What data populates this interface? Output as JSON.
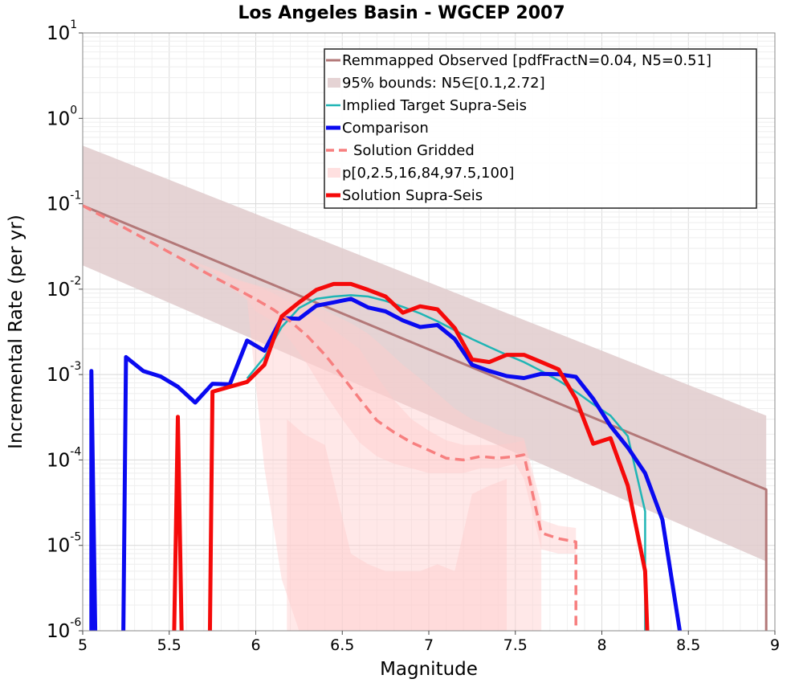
{
  "chart_data": {
    "type": "line",
    "title": "Los Angeles Basin - WGCEP 2007",
    "xlabel": "Magnitude",
    "ylabel": "Incremental Rate (per yr)",
    "xlim": [
      5,
      9
    ],
    "ylim": [
      1e-06,
      10
    ],
    "yscale": "log",
    "grid": true,
    "legend_position": "top-right",
    "x_ticks": [
      {
        "value": 5,
        "label": "5"
      },
      {
        "value": 5.5,
        "label": "5.5"
      },
      {
        "value": 6,
        "label": "6"
      },
      {
        "value": 6.5,
        "label": "6.5"
      },
      {
        "value": 7,
        "label": "7"
      },
      {
        "value": 7.5,
        "label": "7.5"
      },
      {
        "value": 8,
        "label": "8"
      },
      {
        "value": 8.5,
        "label": "8.5"
      },
      {
        "value": 9,
        "label": "9"
      }
    ],
    "y_ticks": [
      {
        "value": 1e-06,
        "base": "10",
        "exp": "-6"
      },
      {
        "value": 1e-05,
        "base": "10",
        "exp": "-5"
      },
      {
        "value": 0.0001,
        "base": "10",
        "exp": "-4"
      },
      {
        "value": 0.001,
        "base": "10",
        "exp": "-3"
      },
      {
        "value": 0.01,
        "base": "10",
        "exp": "-2"
      },
      {
        "value": 0.1,
        "base": "10",
        "exp": "-1"
      },
      {
        "value": 1,
        "base": "10",
        "exp": "0"
      },
      {
        "value": 10,
        "base": "10",
        "exp": "1"
      }
    ],
    "series": [
      {
        "name": "Remmapped Observed [pdfFractN=0.04, N5=0.51]",
        "kind": "line",
        "color": "#b37878",
        "width": 3,
        "x": [
          5.0,
          8.95,
          8.95
        ],
        "y": [
          0.095,
          4.5e-05,
          1e-07
        ]
      },
      {
        "name": "95% bounds: N5∈[0.1,2.72]",
        "kind": "band",
        "color": "#e0cbcd",
        "opacity": 0.85,
        "x": [
          5.0,
          8.95
        ],
        "lower": [
          0.019,
          6.5e-06
        ],
        "upper": [
          0.48,
          0.00033
        ]
      },
      {
        "name": "Implied Target Supra-Seis",
        "kind": "line",
        "color": "#1fb5b5",
        "width": 2.5,
        "x": [
          5.95,
          6.05,
          6.15,
          6.25,
          6.35,
          6.45,
          6.55,
          6.65,
          6.75,
          6.85,
          6.95,
          7.05,
          7.15,
          7.25,
          7.35,
          7.45,
          7.55,
          7.65,
          7.75,
          7.85,
          7.95,
          8.05,
          8.15,
          8.25,
          8.25
        ],
        "y": [
          0.0009,
          0.0016,
          0.0036,
          0.006,
          0.0077,
          0.0082,
          0.0085,
          0.0082,
          0.0073,
          0.0062,
          0.0052,
          0.0042,
          0.0033,
          0.0026,
          0.0021,
          0.0017,
          0.0014,
          0.0011,
          0.00085,
          0.00063,
          0.00045,
          0.00033,
          0.00019,
          2.5e-05,
          1e-07
        ]
      },
      {
        "name": "Comparison",
        "kind": "line",
        "color": "#0a0af0",
        "width": 5,
        "x": [
          5.05,
          5.05,
          5.08,
          5.23,
          5.25,
          5.35,
          5.45,
          5.55,
          5.65,
          5.75,
          5.85,
          5.95,
          6.05,
          6.15,
          6.25,
          6.35,
          6.45,
          6.55,
          6.65,
          6.75,
          6.85,
          6.95,
          7.05,
          7.15,
          7.25,
          7.35,
          7.45,
          7.55,
          7.65,
          7.75,
          7.85,
          7.95,
          8.05,
          8.15,
          8.25,
          8.35,
          8.45,
          8.5
        ],
        "y": [
          1e-07,
          0.0011,
          1e-07,
          1e-07,
          0.0016,
          0.0011,
          0.00095,
          0.00072,
          0.00047,
          0.00078,
          0.00077,
          0.0025,
          0.0019,
          0.0046,
          0.0045,
          0.0064,
          0.007,
          0.0077,
          0.0061,
          0.0055,
          0.0043,
          0.0036,
          0.0038,
          0.0026,
          0.0013,
          0.0011,
          0.00096,
          0.00091,
          0.00102,
          0.00101,
          0.00094,
          0.00052,
          0.00025,
          0.00014,
          7e-05,
          2e-05,
          1e-06,
          1e-07
        ]
      },
      {
        "name": "Solution Gridded",
        "kind": "line",
        "color": "#f77f7f",
        "width": 3.5,
        "dash": "12,7",
        "x": [
          5.0,
          5.1,
          5.2,
          5.3,
          5.4,
          5.5,
          5.6,
          5.7,
          5.8,
          5.9,
          6.0,
          6.1,
          6.2,
          6.3,
          6.4,
          6.5,
          6.6,
          6.7,
          6.8,
          6.9,
          7.0,
          7.1,
          7.2,
          7.3,
          7.4,
          7.5,
          7.55,
          7.65,
          7.75,
          7.85,
          7.85
        ],
        "y": [
          0.095,
          0.074,
          0.058,
          0.045,
          0.035,
          0.027,
          0.021,
          0.016,
          0.0125,
          0.0098,
          0.0076,
          0.0058,
          0.0042,
          0.0028,
          0.0017,
          0.00095,
          0.00052,
          0.00029,
          0.00021,
          0.00016,
          0.00013,
          0.000105,
          0.0001,
          0.00011,
          0.000105,
          0.00011,
          0.000115,
          1.4e-05,
          1.2e-05,
          1.1e-05,
          1e-07
        ]
      },
      {
        "name": "p[0,2.5,16,84,97.5,100]",
        "kind": "fractiles",
        "color": "#ffcccc",
        "opacity": 0.45,
        "bands": [
          {
            "x": [
              5.0,
              5.5,
              5.8,
              5.9,
              6.0,
              6.1,
              6.2,
              6.3,
              6.4,
              6.5,
              6.6,
              6.7,
              6.8,
              6.9,
              7.0,
              7.1,
              7.2,
              7.3,
              7.4,
              7.5,
              7.55,
              7.65,
              7.75,
              7.85
            ],
            "lower": [
              0.095,
              0.027,
              0.014,
              0.011,
              0.0055,
              0.0042,
              0.0025,
              0.0013,
              0.0006,
              0.0003,
              0.00016,
              0.00011,
              9e-05,
              8e-05,
              7e-05,
              7e-05,
              7e-05,
              8e-05,
              8e-05,
              9e-05,
              6e-05,
              9e-06,
              8e-06,
              8e-06
            ],
            "upper": [
              0.095,
              0.027,
              0.016,
              0.0125,
              0.011,
              0.009,
              0.007,
              0.0055,
              0.004,
              0.0028,
              0.002,
              0.00095,
              0.0005,
              0.0003,
              0.00022,
              0.00017,
              0.00015,
              0.00015,
              0.00015,
              0.00016,
              0.00017,
              2e-05,
              1.7e-05,
              1.6e-05
            ]
          },
          {
            "x": [
              5.75,
              5.85,
              5.95,
              6.05,
              6.15,
              6.25,
              6.35,
              6.45,
              6.55,
              6.65,
              6.75,
              6.85,
              6.95,
              7.05,
              7.15,
              7.25,
              7.35,
              7.45,
              7.55,
              7.65
            ],
            "lower": [
              0.016,
              0.0105,
              0.0075,
              8e-05,
              4e-06,
              1e-06,
              1e-06,
              1e-06,
              1e-06,
              1e-06,
              1e-06,
              1e-06,
              1e-06,
              1e-06,
              1e-06,
              1e-06,
              1e-06,
              1e-06,
              1e-06,
              1e-06
            ],
            "upper": [
              0.017,
              0.014,
              0.012,
              0.0105,
              0.0095,
              0.008,
              0.0065,
              0.005,
              0.004,
              0.003,
              0.002,
              0.0013,
              0.0009,
              0.0006,
              0.0004,
              0.0003,
              0.00025,
              0.0002,
              0.00018,
              3e-05
            ]
          },
          {
            "x": [
              6.18,
              6.28,
              6.4,
              6.55,
              6.65,
              6.75,
              6.85,
              6.95,
              7.05,
              7.15,
              7.25,
              7.35,
              7.45
            ],
            "lower": [
              1e-06,
              1e-06,
              1e-06,
              1e-06,
              1e-06,
              1e-06,
              1e-06,
              1e-06,
              1e-06,
              1e-06,
              1e-06,
              1e-06,
              1e-06
            ],
            "upper": [
              0.0003,
              0.0002,
              0.00015,
              8e-06,
              6e-06,
              5e-06,
              5e-06,
              5e-06,
              6e-06,
              5e-06,
              4e-05,
              5e-05,
              6e-05
            ]
          }
        ]
      },
      {
        "name": "Solution Supra-Seis",
        "kind": "line",
        "color": "#f50a0a",
        "width": 5,
        "x": [
          5.52,
          5.55,
          5.58,
          5.73,
          5.75,
          5.85,
          5.95,
          6.05,
          6.15,
          6.25,
          6.35,
          6.45,
          6.55,
          6.65,
          6.75,
          6.85,
          6.95,
          7.05,
          7.15,
          7.25,
          7.35,
          7.45,
          7.55,
          7.65,
          7.75,
          7.85,
          7.95,
          8.05,
          8.15,
          8.25,
          8.28
        ],
        "y": [
          1e-07,
          0.00032,
          1e-07,
          1e-07,
          0.00063,
          0.00072,
          0.00082,
          0.0013,
          0.0048,
          0.007,
          0.0098,
          0.0115,
          0.0115,
          0.0098,
          0.0082,
          0.0053,
          0.0063,
          0.0058,
          0.0035,
          0.0015,
          0.0014,
          0.0017,
          0.0017,
          0.0014,
          0.00115,
          0.00052,
          0.000155,
          0.00018,
          5e-05,
          5e-06,
          1e-07
        ]
      }
    ]
  }
}
